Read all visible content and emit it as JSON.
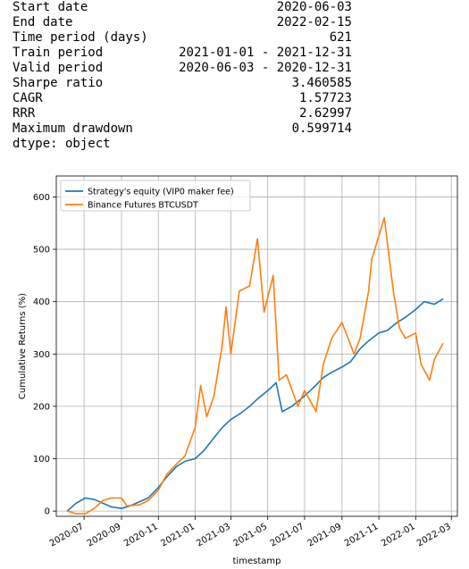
{
  "summary": {
    "rows": [
      {
        "label": "Start date",
        "value": "2020-06-03"
      },
      {
        "label": "End date",
        "value": "2022-02-15"
      },
      {
        "label": "Time period (days)",
        "value": "621"
      },
      {
        "label": "Train period",
        "value": "2021-01-01 - 2021-12-31"
      },
      {
        "label": "Valid period",
        "value": "2020-06-03 - 2020-12-31"
      },
      {
        "label": "Sharpe ratio",
        "value": "3.460585"
      },
      {
        "label": "CAGR",
        "value": "1.57723"
      },
      {
        "label": "RRR",
        "value": "2.62997"
      },
      {
        "label": "Maximum drawdown",
        "value": "0.599714"
      }
    ],
    "dtype": "dtype: object"
  },
  "chart_data": {
    "type": "line",
    "xlabel": "timestamp",
    "ylabel": "Cumulative Returns (%)",
    "xlim": [
      "2020-06-03",
      "2022-02-15"
    ],
    "ylim": [
      -10,
      640
    ],
    "grid": true,
    "legend_position": "top-left",
    "x_ticks": [
      "2020-07",
      "2020-09",
      "2020-11",
      "2021-01",
      "2021-03",
      "2021-05",
      "2021-07",
      "2021-09",
      "2021-11",
      "2022-01",
      "2022-03"
    ],
    "y_ticks": [
      0,
      100,
      200,
      300,
      400,
      500,
      600
    ],
    "series": [
      {
        "name": "Strategy's equity (VIP0 maker fee)",
        "color": "#1f77b4",
        "points": [
          [
            "2020-06-03",
            0
          ],
          [
            "2020-06-18",
            15
          ],
          [
            "2020-07-03",
            25
          ],
          [
            "2020-07-18",
            22
          ],
          [
            "2020-08-01",
            15
          ],
          [
            "2020-08-15",
            8
          ],
          [
            "2020-09-01",
            5
          ],
          [
            "2020-09-15",
            10
          ],
          [
            "2020-10-01",
            18
          ],
          [
            "2020-10-15",
            25
          ],
          [
            "2020-11-01",
            45
          ],
          [
            "2020-11-15",
            65
          ],
          [
            "2020-12-01",
            85
          ],
          [
            "2020-12-15",
            95
          ],
          [
            "2021-01-01",
            100
          ],
          [
            "2021-01-15",
            115
          ],
          [
            "2021-02-01",
            140
          ],
          [
            "2021-02-15",
            160
          ],
          [
            "2021-03-01",
            175
          ],
          [
            "2021-03-15",
            185
          ],
          [
            "2021-04-01",
            200
          ],
          [
            "2021-04-15",
            215
          ],
          [
            "2021-05-01",
            230
          ],
          [
            "2021-05-15",
            245
          ],
          [
            "2021-05-25",
            190
          ],
          [
            "2021-06-10",
            200
          ],
          [
            "2021-07-01",
            220
          ],
          [
            "2021-07-15",
            235
          ],
          [
            "2021-08-01",
            255
          ],
          [
            "2021-08-15",
            265
          ],
          [
            "2021-09-01",
            275
          ],
          [
            "2021-09-15",
            285
          ],
          [
            "2021-10-01",
            310
          ],
          [
            "2021-10-15",
            325
          ],
          [
            "2021-11-01",
            340
          ],
          [
            "2021-11-15",
            345
          ],
          [
            "2021-12-01",
            360
          ],
          [
            "2021-12-15",
            370
          ],
          [
            "2022-01-01",
            385
          ],
          [
            "2022-01-15",
            400
          ],
          [
            "2022-02-01",
            395
          ],
          [
            "2022-02-15",
            405
          ]
        ]
      },
      {
        "name": "Binance Futures BTCUSDT",
        "color": "#ff7f0e",
        "points": [
          [
            "2020-06-03",
            0
          ],
          [
            "2020-06-18",
            -5
          ],
          [
            "2020-07-03",
            -5
          ],
          [
            "2020-07-18",
            5
          ],
          [
            "2020-08-01",
            20
          ],
          [
            "2020-08-15",
            25
          ],
          [
            "2020-09-01",
            25
          ],
          [
            "2020-09-10",
            10
          ],
          [
            "2020-10-01",
            12
          ],
          [
            "2020-10-15",
            20
          ],
          [
            "2020-11-01",
            40
          ],
          [
            "2020-11-15",
            70
          ],
          [
            "2020-12-01",
            90
          ],
          [
            "2020-12-15",
            105
          ],
          [
            "2021-01-01",
            160
          ],
          [
            "2021-01-10",
            240
          ],
          [
            "2021-01-20",
            180
          ],
          [
            "2021-02-01",
            220
          ],
          [
            "2021-02-15",
            320
          ],
          [
            "2021-02-21",
            390
          ],
          [
            "2021-03-01",
            300
          ],
          [
            "2021-03-15",
            420
          ],
          [
            "2021-04-01",
            430
          ],
          [
            "2021-04-14",
            520
          ],
          [
            "2021-04-25",
            380
          ],
          [
            "2021-05-10",
            450
          ],
          [
            "2021-05-20",
            250
          ],
          [
            "2021-06-01",
            260
          ],
          [
            "2021-06-20",
            200
          ],
          [
            "2021-07-01",
            230
          ],
          [
            "2021-07-20",
            190
          ],
          [
            "2021-08-01",
            280
          ],
          [
            "2021-08-15",
            330
          ],
          [
            "2021-09-01",
            360
          ],
          [
            "2021-09-21",
            300
          ],
          [
            "2021-10-01",
            330
          ],
          [
            "2021-10-15",
            420
          ],
          [
            "2021-10-20",
            480
          ],
          [
            "2021-11-10",
            560
          ],
          [
            "2021-11-25",
            420
          ],
          [
            "2021-12-05",
            350
          ],
          [
            "2021-12-15",
            330
          ],
          [
            "2022-01-01",
            340
          ],
          [
            "2022-01-10",
            280
          ],
          [
            "2022-01-24",
            250
          ],
          [
            "2022-02-01",
            290
          ],
          [
            "2022-02-15",
            320
          ]
        ]
      }
    ]
  }
}
